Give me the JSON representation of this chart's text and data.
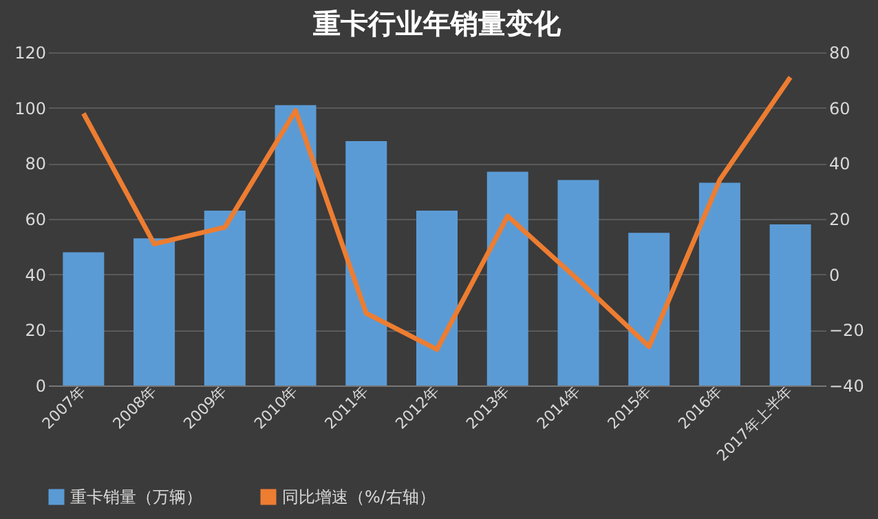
{
  "chart_data": {
    "type": "bar",
    "title": "重卡行业年销量变化",
    "categories": [
      "2007年",
      "2008年",
      "2009年",
      "2010年",
      "2011年",
      "2012年",
      "2013年",
      "2014年",
      "2015年",
      "2016年",
      "2017年上半年"
    ],
    "series": [
      {
        "name": "重卡销量（万辆）",
        "color": "#5b9bd5",
        "values": [
          48,
          53,
          63,
          101,
          88,
          63,
          77,
          74,
          55,
          73,
          58
        ]
      },
      {
        "name": "同比增速（%/右轴）",
        "type": "line",
        "axis": "y2",
        "color": "#ed7d31",
        "values": [
          58,
          11,
          17,
          59,
          -14,
          -27,
          21,
          -2,
          -26,
          34,
          71
        ]
      }
    ],
    "ylim": [
      0,
      120
    ],
    "yticks": [
      0,
      20,
      40,
      60,
      80,
      100,
      120
    ],
    "y2lim": [
      -40,
      80
    ],
    "y2ticks": [
      -40,
      -20,
      0,
      20,
      40,
      60,
      80
    ],
    "grid": "y",
    "legend": "bottom",
    "marker": "none",
    "line_style": "solid"
  }
}
